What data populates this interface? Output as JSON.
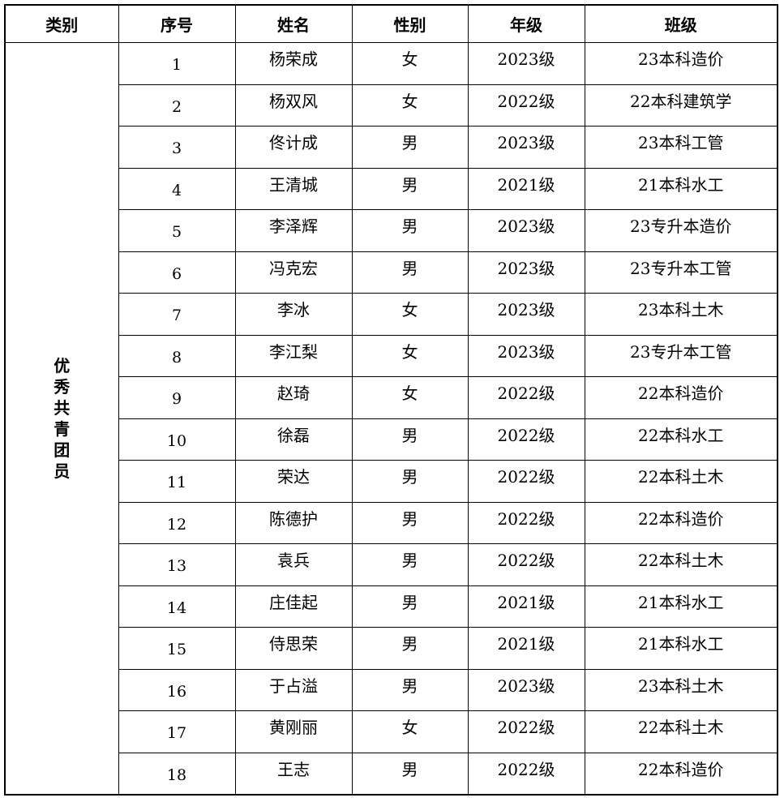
{
  "page": {
    "background": "#ffffff",
    "grid_color": "#000000",
    "text_color": "#000000"
  },
  "table": {
    "columns": [
      "类别",
      "序号",
      "姓名",
      "性别",
      "年级",
      "班级"
    ],
    "category": "优秀共青团员",
    "rows": [
      {
        "no": "1",
        "name": "杨荣成",
        "gender": "女",
        "grade": "2023级",
        "class": "23本科造价"
      },
      {
        "no": "2",
        "name": "杨双风",
        "gender": "女",
        "grade": "2022级",
        "class": "22本科建筑学"
      },
      {
        "no": "3",
        "name": "佟计成",
        "gender": "男",
        "grade": "2023级",
        "class": "23本科工管"
      },
      {
        "no": "4",
        "name": "王清城",
        "gender": "男",
        "grade": "2021级",
        "class": "21本科水工"
      },
      {
        "no": "5",
        "name": "李泽辉",
        "gender": "男",
        "grade": "2023级",
        "class": "23专升本造价"
      },
      {
        "no": "6",
        "name": "冯克宏",
        "gender": "男",
        "grade": "2023级",
        "class": "23专升本工管"
      },
      {
        "no": "7",
        "name": "李冰",
        "gender": "女",
        "grade": "2023级",
        "class": "23本科土木"
      },
      {
        "no": "8",
        "name": "李江梨",
        "gender": "女",
        "grade": "2023级",
        "class": "23专升本工管"
      },
      {
        "no": "9",
        "name": "赵琦",
        "gender": "女",
        "grade": "2022级",
        "class": "22本科造价"
      },
      {
        "no": "10",
        "name": "徐磊",
        "gender": "男",
        "grade": "2022级",
        "class": "22本科水工"
      },
      {
        "no": "11",
        "name": "荣达",
        "gender": "男",
        "grade": "2022级",
        "class": "22本科土木"
      },
      {
        "no": "12",
        "name": "陈德护",
        "gender": "男",
        "grade": "2022级",
        "class": "22本科造价"
      },
      {
        "no": "13",
        "name": "袁兵",
        "gender": "男",
        "grade": "2022级",
        "class": "22本科土木"
      },
      {
        "no": "14",
        "name": "庄佳起",
        "gender": "男",
        "grade": "2021级",
        "class": "21本科水工"
      },
      {
        "no": "15",
        "name": "侍思荣",
        "gender": "男",
        "grade": "2021级",
        "class": "21本科水工"
      },
      {
        "no": "16",
        "name": "于占溢",
        "gender": "男",
        "grade": "2023级",
        "class": "23本科土木"
      },
      {
        "no": "17",
        "name": "黄刚丽",
        "gender": "女",
        "grade": "2022级",
        "class": "22本科土木"
      },
      {
        "no": "18",
        "name": "王志",
        "gender": "男",
        "grade": "2022级",
        "class": "22本科造价"
      }
    ]
  }
}
